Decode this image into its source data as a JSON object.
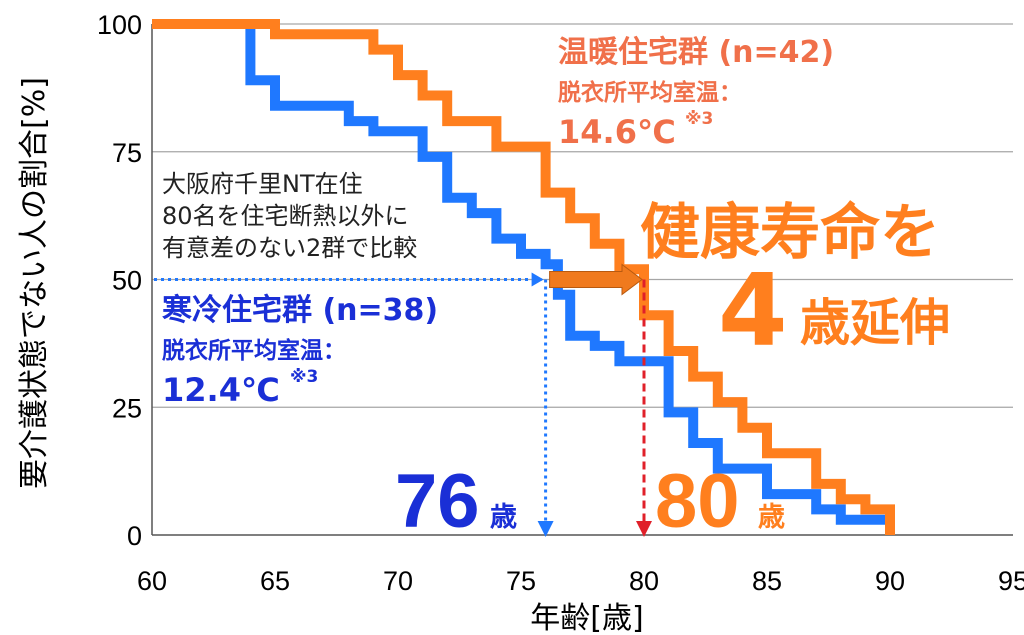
{
  "chart_data": {
    "type": "line",
    "step": true,
    "xlabel": "年齢[歳]",
    "ylabel": "要介護状態でない人の割合[%]",
    "xlim": [
      60,
      95
    ],
    "ylim": [
      0,
      100
    ],
    "x_ticks": [
      "60",
      "65",
      "70",
      "75",
      "80",
      "85",
      "90",
      "95"
    ],
    "y_ticks": [
      "0",
      "25",
      "50",
      "75",
      "100"
    ],
    "grid": "horizontal",
    "colors": {
      "cold": "#1f78ff",
      "warm": "#ff7f1e",
      "warm_label": "#f0704a",
      "cold_label": "#1a2fd6",
      "median_cold_line": "#1f78ff",
      "median_warm_line": "#e0202a",
      "arrow": "#f07a1e"
    },
    "series": [
      {
        "name": "寒冷住宅群 (n=38)",
        "group": "cold",
        "points": [
          [
            60,
            100
          ],
          [
            64,
            100
          ],
          [
            64,
            89
          ],
          [
            65,
            89
          ],
          [
            65,
            84
          ],
          [
            68,
            84
          ],
          [
            68,
            81
          ],
          [
            69,
            81
          ],
          [
            69,
            79
          ],
          [
            71,
            79
          ],
          [
            71,
            74
          ],
          [
            72,
            74
          ],
          [
            72,
            66
          ],
          [
            73,
            66
          ],
          [
            73,
            63
          ],
          [
            74,
            63
          ],
          [
            74,
            58
          ],
          [
            75,
            58
          ],
          [
            75,
            55
          ],
          [
            76,
            55
          ],
          [
            76,
            53
          ],
          [
            76.5,
            53
          ],
          [
            76.5,
            47
          ],
          [
            77,
            47
          ],
          [
            77,
            39
          ],
          [
            78,
            39
          ],
          [
            78,
            37
          ],
          [
            79,
            37
          ],
          [
            79,
            34
          ],
          [
            81,
            34
          ],
          [
            81,
            24
          ],
          [
            82,
            24
          ],
          [
            82,
            18
          ],
          [
            83,
            18
          ],
          [
            83,
            13
          ],
          [
            85,
            13
          ],
          [
            85,
            8
          ],
          [
            87,
            8
          ],
          [
            87,
            5
          ],
          [
            88,
            5
          ],
          [
            88,
            3
          ],
          [
            90,
            3
          ]
        ]
      },
      {
        "name": "温暖住宅群 (n=42)",
        "group": "warm",
        "points": [
          [
            60,
            100
          ],
          [
            65,
            100
          ],
          [
            65,
            98
          ],
          [
            69,
            98
          ],
          [
            69,
            95
          ],
          [
            70,
            95
          ],
          [
            70,
            90
          ],
          [
            71,
            90
          ],
          [
            71,
            86
          ],
          [
            72,
            86
          ],
          [
            72,
            81
          ],
          [
            74,
            81
          ],
          [
            74,
            76
          ],
          [
            76,
            76
          ],
          [
            76,
            67
          ],
          [
            77,
            67
          ],
          [
            77,
            62
          ],
          [
            78,
            62
          ],
          [
            78,
            57
          ],
          [
            79,
            57
          ],
          [
            79,
            52
          ],
          [
            80,
            52
          ],
          [
            80,
            43
          ],
          [
            81,
            43
          ],
          [
            81,
            36
          ],
          [
            82,
            36
          ],
          [
            82,
            31
          ],
          [
            83,
            31
          ],
          [
            83,
            26
          ],
          [
            84,
            26
          ],
          [
            84,
            21
          ],
          [
            85,
            21
          ],
          [
            85,
            16
          ],
          [
            87,
            16
          ],
          [
            87,
            10
          ],
          [
            88,
            10
          ],
          [
            88,
            7
          ],
          [
            89,
            7
          ],
          [
            89,
            5
          ],
          [
            90,
            5
          ],
          [
            90,
            0
          ]
        ]
      }
    ],
    "median_markers": [
      {
        "group": "cold",
        "age": 76,
        "percent": 50
      },
      {
        "group": "warm",
        "age": 80,
        "percent": 50
      }
    ]
  },
  "annotations": {
    "study_note": [
      "大阪府千里NT在住",
      "80名を住宅断熱以外に",
      "有意差のない2群で比較"
    ],
    "warm_group": {
      "title": "温暖住宅群 (n=42)",
      "subtitle": "脱衣所平均室温：",
      "temp": "14.6℃",
      "note": "※3"
    },
    "cold_group": {
      "title": "寒冷住宅群 (n=38)",
      "subtitle": "脱衣所平均室温：",
      "temp": "12.4℃",
      "note": "※3"
    },
    "headline_line1": "健康寿命を",
    "headline_number": "4",
    "headline_suffix": "歳延伸",
    "cold_age_number": "76",
    "warm_age_number": "80",
    "age_unit": "歳"
  }
}
